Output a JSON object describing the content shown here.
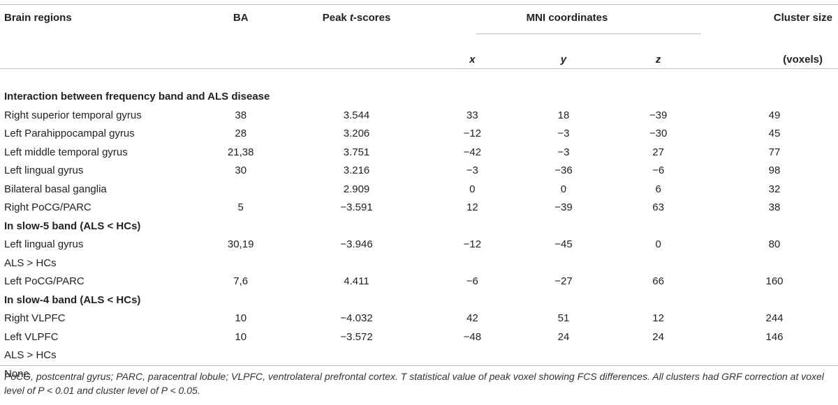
{
  "headers": {
    "brain_regions": "Brain regions",
    "ba": "BA",
    "peak_prefix": "Peak ",
    "peak_t": "t",
    "peak_suffix": "-scores",
    "mni": "MNI coordinates",
    "x": "x",
    "y": "y",
    "z": "z",
    "cluster_size": "Cluster size",
    "voxels": "(voxels)"
  },
  "rows": [
    {
      "type": "section",
      "label": "Interaction between frequency band and ALS disease"
    },
    {
      "type": "data",
      "region": "Right superior temporal gyrus",
      "ba": "38",
      "peak": "3.544",
      "x": "33",
      "y": "18",
      "z": "−39",
      "cluster": "49"
    },
    {
      "type": "data",
      "region": "Left Parahippocampal gyrus",
      "ba": "28",
      "peak": "3.206",
      "x": "−12",
      "y": "−3",
      "z": "−30",
      "cluster": "45"
    },
    {
      "type": "data",
      "region": "Left middle temporal gyrus",
      "ba": "21,38",
      "peak": "3.751",
      "x": "−42",
      "y": "−3",
      "z": "27",
      "cluster": "77"
    },
    {
      "type": "data",
      "region": "Left lingual gyrus",
      "ba": "30",
      "peak": "3.216",
      "x": "−3",
      "y": "−36",
      "z": "−6",
      "cluster": "98"
    },
    {
      "type": "data",
      "region": "Bilateral basal ganglia",
      "ba": "",
      "peak": "2.909",
      "x": "0",
      "y": "0",
      "z": "6",
      "cluster": "32"
    },
    {
      "type": "data",
      "region": "Right PoCG/PARC",
      "ba": "5",
      "peak": "−3.591",
      "x": "12",
      "y": "−39",
      "z": "63",
      "cluster": "38"
    },
    {
      "type": "section",
      "label": "In slow-5 band (ALS < HCs)"
    },
    {
      "type": "data",
      "region": "Left lingual gyrus",
      "ba": "30,19",
      "peak": "−3.946",
      "x": "−12",
      "y": "−45",
      "z": "0",
      "cluster": "80"
    },
    {
      "type": "plain",
      "label": "ALS > HCs"
    },
    {
      "type": "data",
      "region": "Left PoCG/PARC",
      "ba": "7,6",
      "peak": "4.411",
      "x": "−6",
      "y": "−27",
      "z": "66",
      "cluster": "160"
    },
    {
      "type": "section",
      "label": "In slow-4 band (ALS < HCs)"
    },
    {
      "type": "data",
      "region": "Right VLPFC",
      "ba": "10",
      "peak": "−4.032",
      "x": "42",
      "y": "51",
      "z": "12",
      "cluster": "244"
    },
    {
      "type": "data",
      "region": "Left VLPFC",
      "ba": "10",
      "peak": "−3.572",
      "x": "−48",
      "y": "24",
      "z": "24",
      "cluster": "146"
    },
    {
      "type": "plain",
      "label": "ALS > HCs"
    },
    {
      "type": "plain",
      "label": "None"
    }
  ],
  "footnote": "PoCG, postcentral gyrus; PARC, paracentral lobule; VLPFC, ventrolateral prefrontal cortex. T statistical value of peak voxel showing FCS differences. All clusters had GRF correction at voxel level of P < 0.01 and cluster level of P < 0.05."
}
